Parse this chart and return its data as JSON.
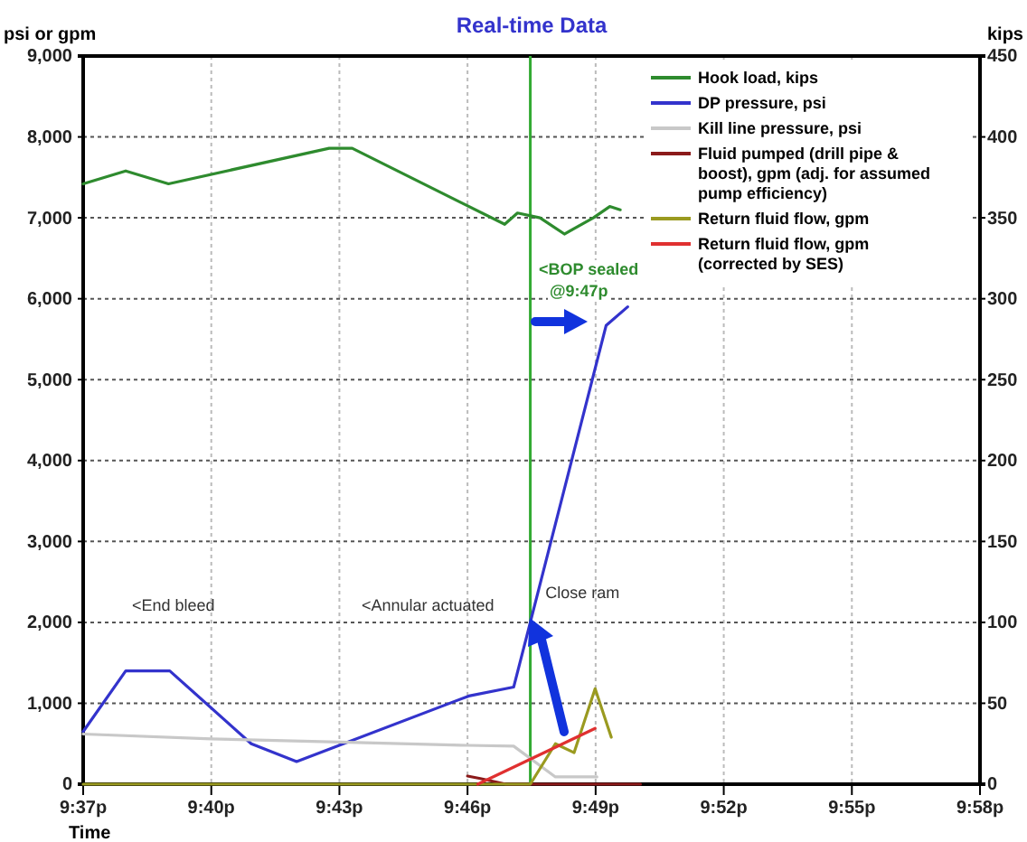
{
  "chart_data": {
    "type": "line",
    "title": "Real-time Data",
    "xlabel": "Time",
    "ylabel": "psi or gpm",
    "y2label": "kips",
    "xlim": [
      21.6167,
      21.9667
    ],
    "xticks": [
      {
        "value": 21.6167,
        "label": "9:37p"
      },
      {
        "value": 21.6667,
        "label": "9:40p"
      },
      {
        "value": 21.7167,
        "label": "9:43p"
      },
      {
        "value": 21.7667,
        "label": "9:46p"
      },
      {
        "value": 21.8167,
        "label": "9:49p"
      },
      {
        "value": 21.8667,
        "label": "9:52p"
      },
      {
        "value": 21.9167,
        "label": "9:55p"
      },
      {
        "value": 21.9667,
        "label": "9:58p"
      }
    ],
    "ylim": [
      0,
      9000
    ],
    "yticks": [
      {
        "value": 0,
        "label": "0"
      },
      {
        "value": 1000,
        "label": "1,000"
      },
      {
        "value": 2000,
        "label": "2,000"
      },
      {
        "value": 3000,
        "label": "3,000"
      },
      {
        "value": 4000,
        "label": "4,000"
      },
      {
        "value": 5000,
        "label": "5,000"
      },
      {
        "value": 6000,
        "label": "6,000"
      },
      {
        "value": 7000,
        "label": "7,000"
      },
      {
        "value": 8000,
        "label": "8,000"
      },
      {
        "value": 9000,
        "label": "9,000"
      }
    ],
    "y2lim": [
      0,
      450
    ],
    "y2ticks": [
      0,
      50,
      100,
      150,
      200,
      250,
      300,
      350,
      400,
      450
    ],
    "grid": true,
    "legend": "top right",
    "series": [
      {
        "name": "Hook load, kips",
        "color": "#2e8b2e",
        "axis": "y2",
        "x": [
          21.6167,
          21.6333,
          21.65,
          21.7127,
          21.7217,
          21.7812,
          21.7862,
          21.795,
          21.8045,
          21.8158,
          21.8222,
          21.8263
        ],
        "values": [
          371,
          379,
          371,
          393,
          393,
          346,
          353,
          350,
          340,
          350,
          357,
          355
        ]
      },
      {
        "name": "DP pressure, psi",
        "color": "#3333cc",
        "x": [
          21.6167,
          21.6333,
          21.6505,
          21.6823,
          21.7,
          21.7672,
          21.7847,
          21.7912,
          21.8208,
          21.8292
        ],
        "values": [
          650,
          1400,
          1400,
          500,
          280,
          1090,
          1200,
          2000,
          5670,
          5900
        ]
      },
      {
        "name": "Kill line pressure, psi",
        "color": "#c8c8c8",
        "x": [
          21.6167,
          21.6667,
          21.7167,
          21.7667,
          21.7847,
          21.801,
          21.8172
        ],
        "values": [
          620,
          560,
          520,
          480,
          470,
          90,
          90
        ]
      },
      {
        "name": "Fluid pumped (drill pipe & boost), gpm (adj. for assumed pump efficiency)",
        "color": "#8b1a1a",
        "x": [
          21.7667,
          21.7717,
          21.7817,
          21.8342
        ],
        "values": [
          100,
          70,
          0,
          0
        ]
      },
      {
        "name": "Return fluid flow, gpm",
        "color": "#9a9a20",
        "x": [
          21.6167,
          21.7912,
          21.801,
          21.8083,
          21.8165,
          21.8228
        ],
        "values": [
          0,
          0,
          500,
          390,
          1180,
          580
        ]
      },
      {
        "name": "Return fluid flow, gpm (corrected by SES)",
        "color": "#e03030",
        "x": [
          21.7707,
          21.8165
        ],
        "values": [
          0,
          690
        ]
      }
    ],
    "ref_lines": [
      {
        "axis": "x",
        "value": 21.7912,
        "color": "#33aa33"
      }
    ],
    "annotations": [
      "<End bleed",
      "<Annular actuated",
      {
        "text": "Close ram",
        "x": 21.795,
        "y": 2300
      },
      "<BOP sealed",
      "@9:47p"
    ]
  }
}
